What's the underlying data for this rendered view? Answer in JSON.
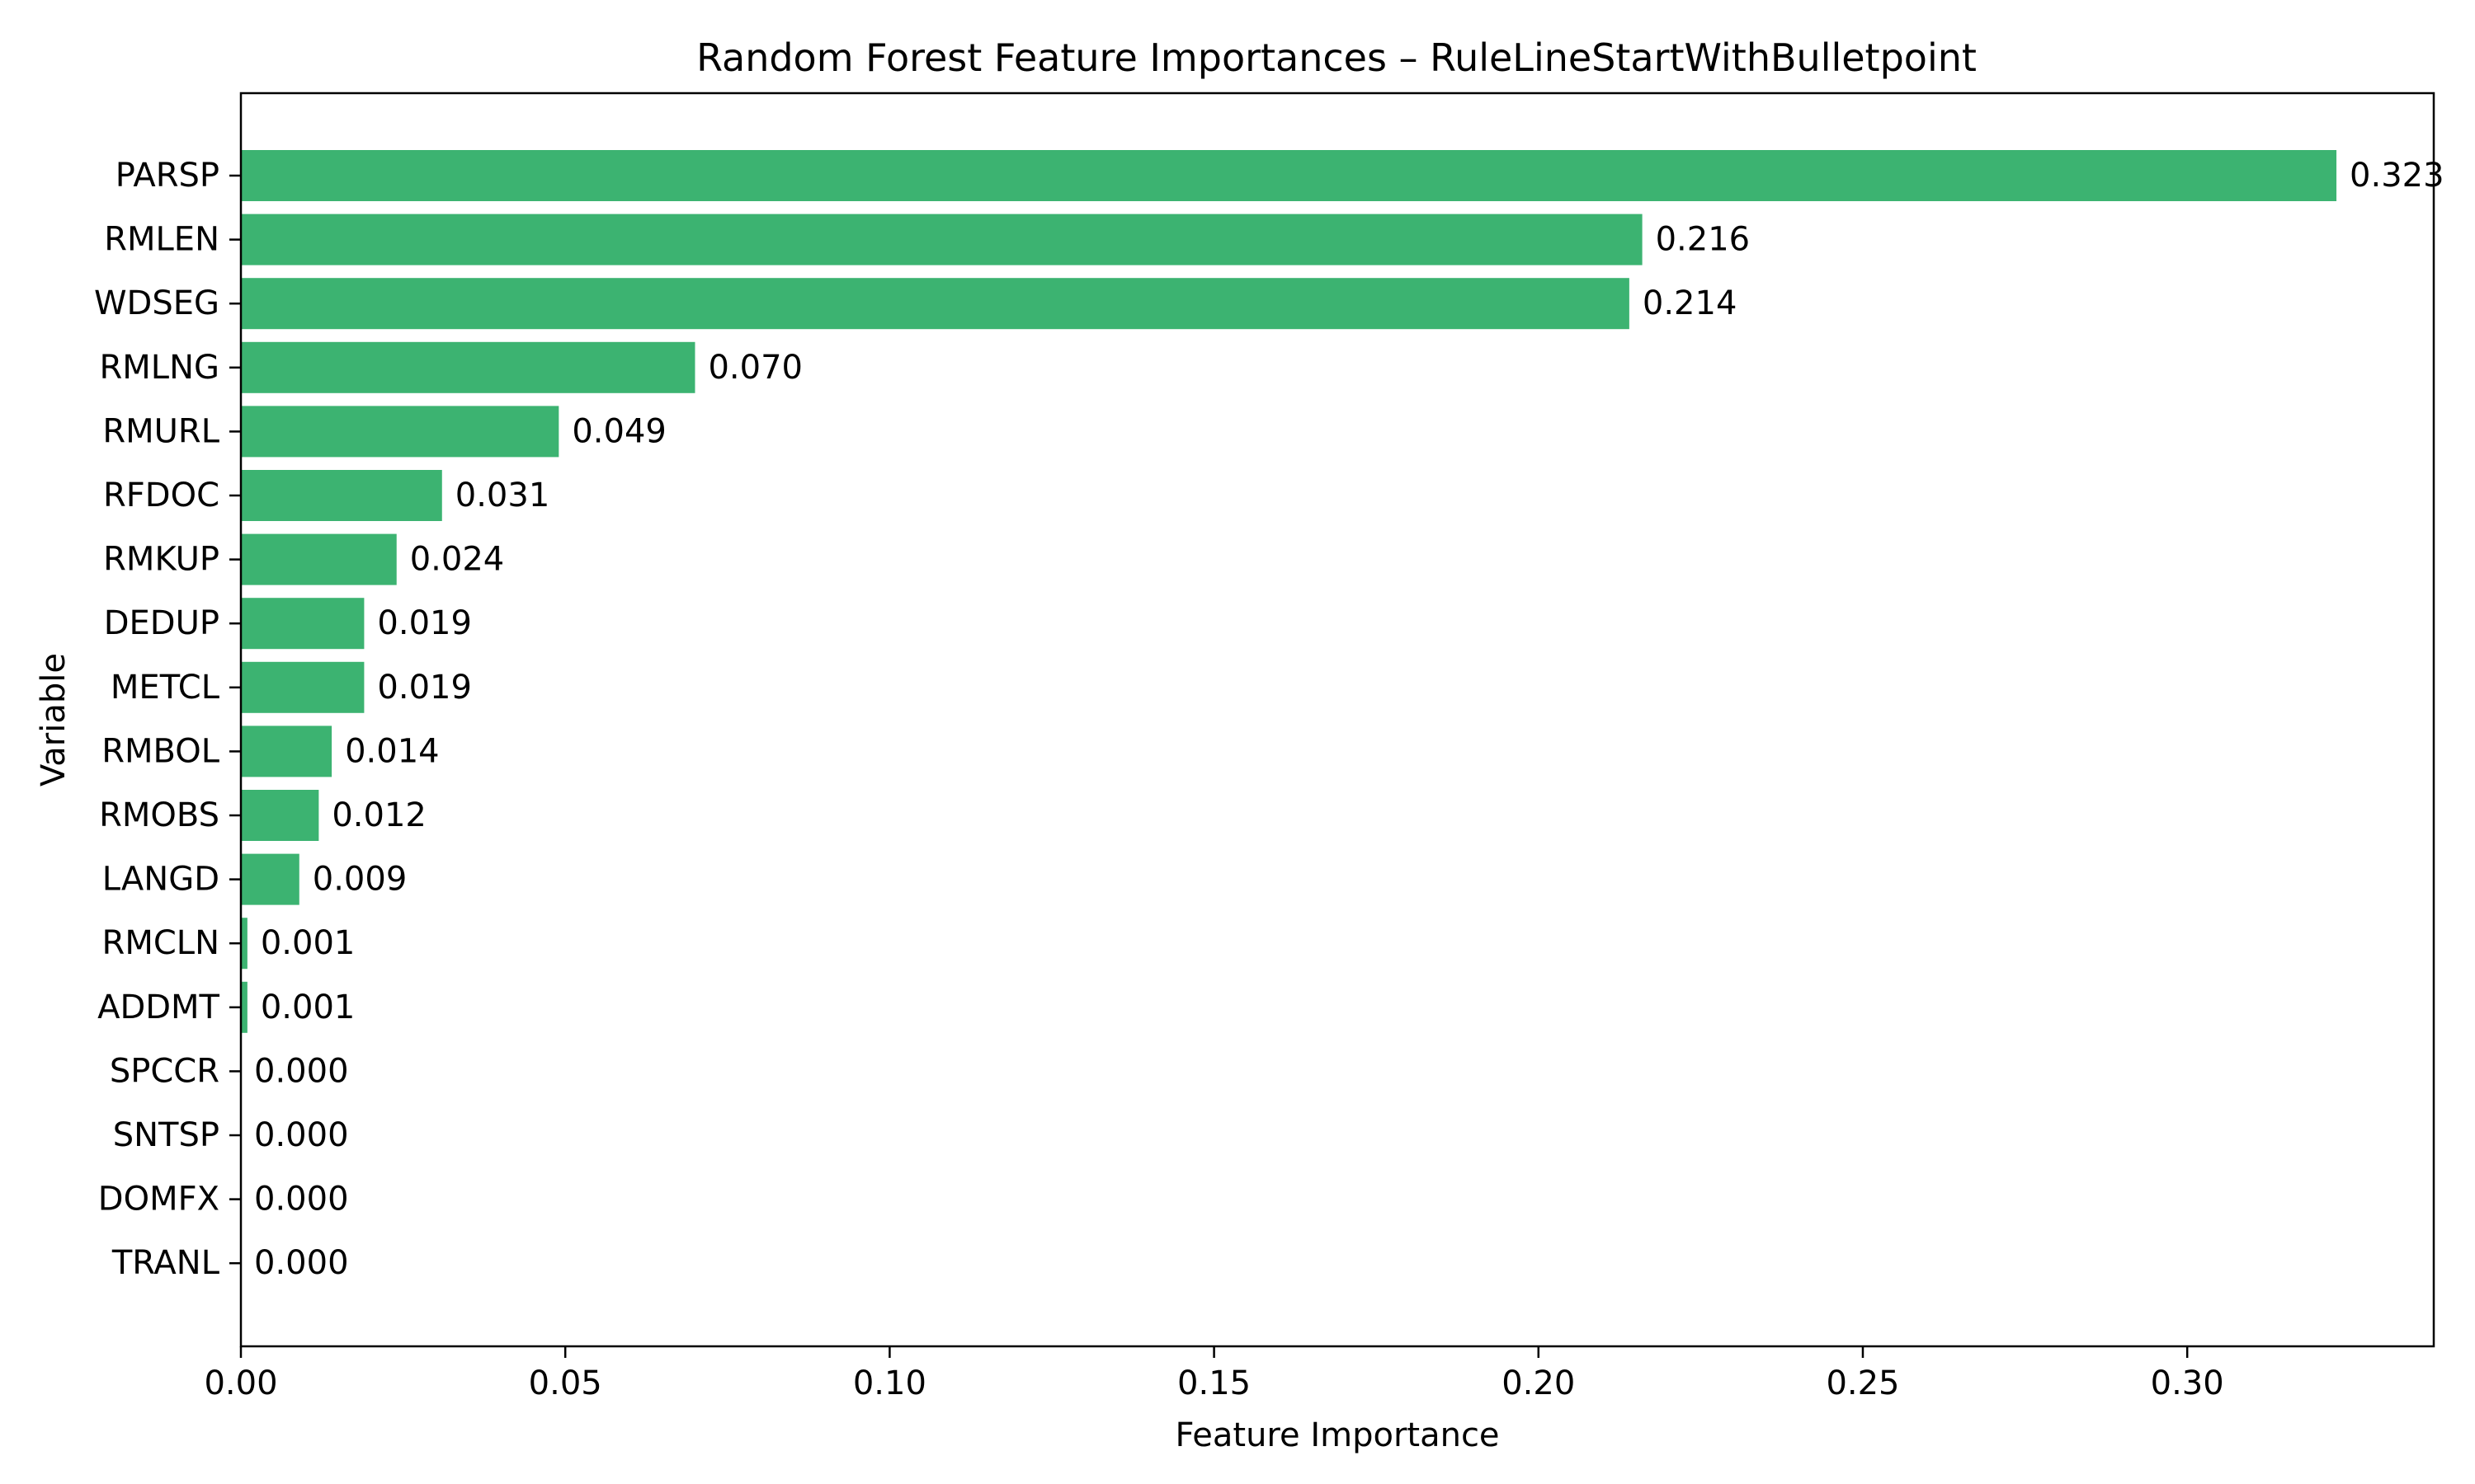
{
  "chart_data": {
    "type": "bar",
    "orientation": "horizontal",
    "title": "Random Forest Feature Importances – RuleLineStartWithBulletpoint",
    "xlabel": "Feature Importance",
    "ylabel": "Variable",
    "xlim": [
      0,
      0.338
    ],
    "xticks": [
      0,
      0.05,
      0.1,
      0.15,
      0.2,
      0.25,
      0.3
    ],
    "xtick_labels": [
      "0.00",
      "0.05",
      "0.10",
      "0.15",
      "0.20",
      "0.25",
      "0.30"
    ],
    "grid": false,
    "bar_color": "#3cb371",
    "categories": [
      "PARSP",
      "RMLEN",
      "WDSEG",
      "RMLNG",
      "RMURL",
      "RFDOC",
      "RMKUP",
      "DEDUP",
      "METCL",
      "RMBOL",
      "RMOBS",
      "LANGD",
      "RMCLN",
      "ADDMT",
      "SPCCR",
      "SNTSP",
      "DOMFX",
      "TRANL"
    ],
    "values": [
      0.323,
      0.216,
      0.214,
      0.07,
      0.049,
      0.031,
      0.024,
      0.019,
      0.019,
      0.014,
      0.012,
      0.009,
      0.001,
      0.001,
      0.0,
      0.0,
      0.0,
      0.0
    ],
    "value_labels": [
      "0.323",
      "0.216",
      "0.214",
      "0.070",
      "0.049",
      "0.031",
      "0.024",
      "0.019",
      "0.019",
      "0.014",
      "0.012",
      "0.009",
      "0.001",
      "0.001",
      "0.000",
      "0.000",
      "0.000",
      "0.000"
    ]
  }
}
